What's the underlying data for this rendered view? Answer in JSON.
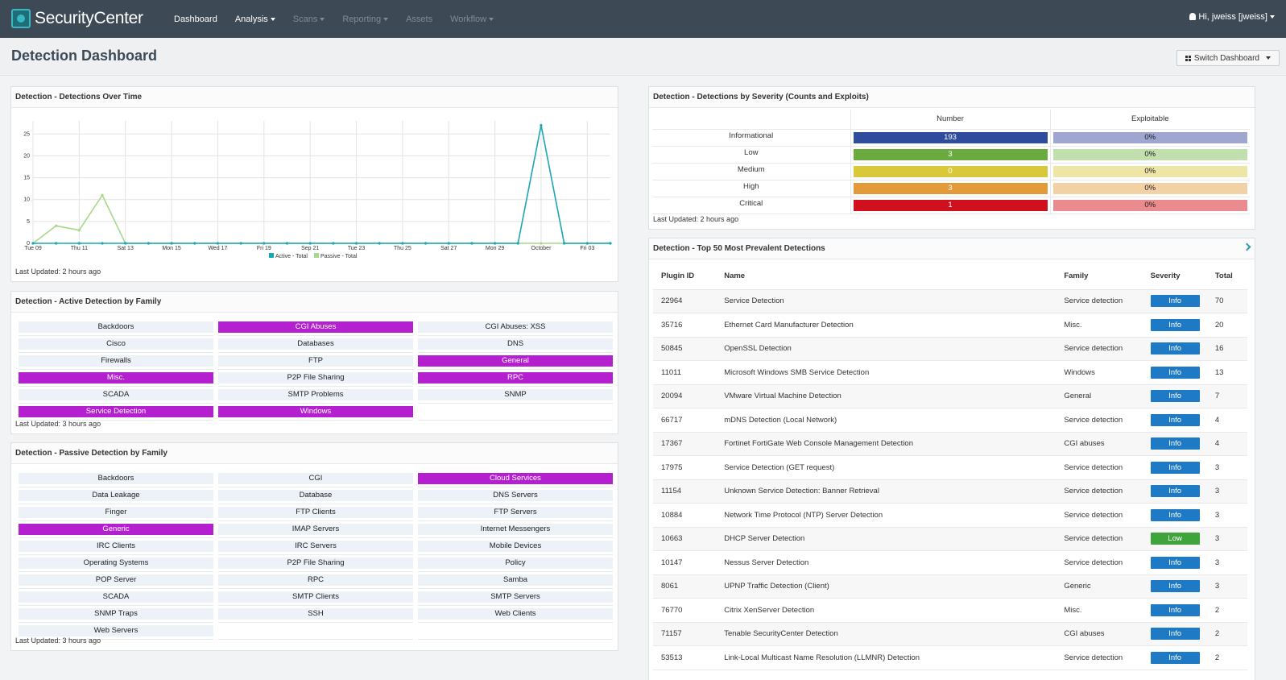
{
  "app": {
    "title": "SecurityCenter"
  },
  "nav": {
    "items": [
      {
        "label": "Dashboard",
        "dropdown": false,
        "enabled": true
      },
      {
        "label": "Analysis",
        "dropdown": true,
        "enabled": true
      },
      {
        "label": "Scans",
        "dropdown": true,
        "enabled": false
      },
      {
        "label": "Reporting",
        "dropdown": true,
        "enabled": false
      },
      {
        "label": "Assets",
        "dropdown": false,
        "enabled": false
      },
      {
        "label": "Workflow",
        "dropdown": true,
        "enabled": false
      }
    ],
    "user": "Hi, jweiss [jweiss]"
  },
  "page": {
    "title": "Detection Dashboard",
    "switch_label": "Switch Dashboard"
  },
  "colors": {
    "accent": "#3bb7c4",
    "hit": "#b41fd0",
    "active_series": "#1aa7b5",
    "passive_series": "#a6d98a"
  },
  "over_time": {
    "title": "Detection - Detections Over Time",
    "updated": "Last Updated: 2 hours ago",
    "chart_data": {
      "type": "line",
      "x_ticks": [
        "Tue 09",
        "Thu 11",
        "Sat 13",
        "Mon 15",
        "Wed 17",
        "Fri 19",
        "Sep 21",
        "Tue 23",
        "Thu 25",
        "Sat 27",
        "Mon 29",
        "October",
        "Fri 03"
      ],
      "y_ticks": [
        0,
        5,
        10,
        15,
        20,
        25
      ],
      "ylim": [
        0,
        28
      ],
      "series": [
        {
          "name": "Active - Total",
          "color": "#1aa7b5",
          "values": [
            0,
            0,
            0,
            0,
            0,
            0,
            0,
            0,
            0,
            0,
            0,
            0,
            0,
            0,
            0,
            0,
            0,
            0,
            0,
            0,
            0,
            0,
            27,
            0,
            0,
            0
          ]
        },
        {
          "name": "Passive - Total",
          "color": "#a6d98a",
          "values": [
            0,
            4,
            3,
            11,
            0,
            0,
            0,
            0,
            0,
            0,
            0,
            0,
            0,
            0,
            0,
            0,
            0,
            0,
            0,
            0,
            0,
            0,
            0,
            0,
            0,
            0
          ]
        }
      ]
    }
  },
  "active_family": {
    "title": "Detection - Active Detection by Family",
    "updated": "Last Updated: 3 hours ago",
    "cells": [
      {
        "label": "Backdoors",
        "hit": false
      },
      {
        "label": "CGI Abuses",
        "hit": true
      },
      {
        "label": "CGI Abuses: XSS",
        "hit": false
      },
      {
        "label": "Cisco",
        "hit": false
      },
      {
        "label": "Databases",
        "hit": false
      },
      {
        "label": "DNS",
        "hit": false
      },
      {
        "label": "Firewalls",
        "hit": false
      },
      {
        "label": "FTP",
        "hit": false
      },
      {
        "label": "General",
        "hit": true
      },
      {
        "label": "Misc.",
        "hit": true
      },
      {
        "label": "P2P File Sharing",
        "hit": false
      },
      {
        "label": "RPC",
        "hit": true
      },
      {
        "label": "SCADA",
        "hit": false
      },
      {
        "label": "SMTP Problems",
        "hit": false
      },
      {
        "label": "SNMP",
        "hit": false
      },
      {
        "label": "Service Detection",
        "hit": true
      },
      {
        "label": "Windows",
        "hit": true
      },
      {
        "label": "",
        "hit": false
      }
    ]
  },
  "passive_family": {
    "title": "Detection - Passive Detection by Family",
    "updated": "Last Updated: 3 hours ago",
    "cells": [
      {
        "label": "Backdoors",
        "hit": false
      },
      {
        "label": "CGI",
        "hit": false
      },
      {
        "label": "Cloud Services",
        "hit": true
      },
      {
        "label": "Data Leakage",
        "hit": false
      },
      {
        "label": "Database",
        "hit": false
      },
      {
        "label": "DNS Servers",
        "hit": false
      },
      {
        "label": "Finger",
        "hit": false
      },
      {
        "label": "FTP Clients",
        "hit": false
      },
      {
        "label": "FTP Servers",
        "hit": false
      },
      {
        "label": "Generic",
        "hit": true
      },
      {
        "label": "IMAP Servers",
        "hit": false
      },
      {
        "label": "Internet Messengers",
        "hit": false
      },
      {
        "label": "IRC Clients",
        "hit": false
      },
      {
        "label": "IRC Servers",
        "hit": false
      },
      {
        "label": "Mobile Devices",
        "hit": false
      },
      {
        "label": "Operating Systems",
        "hit": false
      },
      {
        "label": "P2P File Sharing",
        "hit": false
      },
      {
        "label": "Policy",
        "hit": false
      },
      {
        "label": "POP Server",
        "hit": false
      },
      {
        "label": "RPC",
        "hit": false
      },
      {
        "label": "Samba",
        "hit": false
      },
      {
        "label": "SCADA",
        "hit": false
      },
      {
        "label": "SMTP Clients",
        "hit": false
      },
      {
        "label": "SMTP Servers",
        "hit": false
      },
      {
        "label": "SNMP Traps",
        "hit": false
      },
      {
        "label": "SSH",
        "hit": false
      },
      {
        "label": "Web Clients",
        "hit": false
      },
      {
        "label": "Web Servers",
        "hit": false
      },
      {
        "label": "",
        "hit": false
      },
      {
        "label": "",
        "hit": false
      }
    ]
  },
  "severity": {
    "title": "Detection - Detections by Severity (Counts and Exploits)",
    "updated": "Last Updated: 2 hours ago",
    "col_number": "Number",
    "col_exploitable": "Exploitable",
    "rows": [
      {
        "label": "Informational",
        "number": "193",
        "exploitable": "0%",
        "color": "#2f4b9c",
        "light": "#9fa6cf"
      },
      {
        "label": "Low",
        "number": "3",
        "exploitable": "0%",
        "color": "#6aaa3e",
        "light": "#c2dfae"
      },
      {
        "label": "Medium",
        "number": "0",
        "exploitable": "0%",
        "color": "#d9c93a",
        "light": "#eee6a6"
      },
      {
        "label": "High",
        "number": "3",
        "exploitable": "0%",
        "color": "#e29a3b",
        "light": "#f2d2a4"
      },
      {
        "label": "Critical",
        "number": "1",
        "exploitable": "0%",
        "color": "#d0101c",
        "light": "#ea8b90"
      }
    ]
  },
  "top50": {
    "title": "Detection - Top 50 Most Prevalent Detections",
    "columns": [
      "Plugin ID",
      "Name",
      "Family",
      "Severity",
      "Total"
    ],
    "rows": [
      {
        "id": "22964",
        "name": "Service Detection",
        "family": "Service detection",
        "severity": "Info",
        "total": "70"
      },
      {
        "id": "35716",
        "name": "Ethernet Card Manufacturer Detection",
        "family": "Misc.",
        "severity": "Info",
        "total": "20"
      },
      {
        "id": "50845",
        "name": "OpenSSL Detection",
        "family": "Service detection",
        "severity": "Info",
        "total": "16"
      },
      {
        "id": "11011",
        "name": "Microsoft Windows SMB Service Detection",
        "family": "Windows",
        "severity": "Info",
        "total": "13"
      },
      {
        "id": "20094",
        "name": "VMware Virtual Machine Detection",
        "family": "General",
        "severity": "Info",
        "total": "7"
      },
      {
        "id": "66717",
        "name": "mDNS Detection (Local Network)",
        "family": "Service detection",
        "severity": "Info",
        "total": "4"
      },
      {
        "id": "17367",
        "name": "Fortinet FortiGate Web Console Management Detection",
        "family": "CGI abuses",
        "severity": "Info",
        "total": "4"
      },
      {
        "id": "17975",
        "name": "Service Detection (GET request)",
        "family": "Service detection",
        "severity": "Info",
        "total": "3"
      },
      {
        "id": "11154",
        "name": "Unknown Service Detection: Banner Retrieval",
        "family": "Service detection",
        "severity": "Info",
        "total": "3"
      },
      {
        "id": "10884",
        "name": "Network Time Protocol (NTP) Server Detection",
        "family": "Service detection",
        "severity": "Info",
        "total": "3"
      },
      {
        "id": "10663",
        "name": "DHCP Server Detection",
        "family": "Service detection",
        "severity": "Low",
        "total": "3"
      },
      {
        "id": "10147",
        "name": "Nessus Server Detection",
        "family": "Service detection",
        "severity": "Info",
        "total": "3"
      },
      {
        "id": "8061",
        "name": "UPNP Traffic Detection (Client)",
        "family": "Generic",
        "severity": "Info",
        "total": "3"
      },
      {
        "id": "76770",
        "name": "Citrix XenServer Detection",
        "family": "Misc.",
        "severity": "Info",
        "total": "2"
      },
      {
        "id": "71157",
        "name": "Tenable SecurityCenter Detection",
        "family": "CGI abuses",
        "severity": "Info",
        "total": "2"
      },
      {
        "id": "53513",
        "name": "Link-Local Multicast Name Resolution (LLMNR) Detection",
        "family": "Service detection",
        "severity": "Info",
        "total": "2"
      }
    ],
    "severity_colors": {
      "Info": "#1f7ac6",
      "Low": "#3ea43b"
    }
  }
}
